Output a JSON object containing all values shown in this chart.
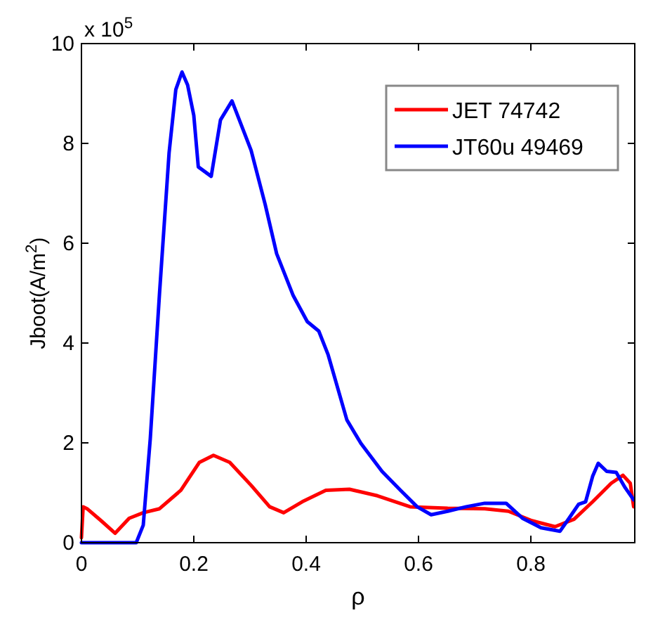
{
  "chart_data": {
    "type": "line",
    "xlabel": "ρ",
    "ylabel": "Jboot(A/m$^{2}$)",
    "annotations": [
      "x 10$^{5}$"
    ],
    "xlim": [
      0,
      0.985
    ],
    "xticks": [
      0,
      0.2,
      0.4,
      0.6,
      0.8
    ],
    "ylim": [
      0,
      10
    ],
    "yticks": [
      0,
      2,
      4,
      6,
      8,
      10
    ],
    "grid": false,
    "legend": "top right",
    "series": [
      {
        "name": "JET 74742",
        "color": "#ff0000",
        "x": [
          0,
          0.003,
          0.01,
          0.035,
          0.06,
          0.085,
          0.11,
          0.139,
          0.177,
          0.21,
          0.235,
          0.264,
          0.302,
          0.335,
          0.36,
          0.393,
          0.435,
          0.477,
          0.527,
          0.585,
          0.652,
          0.718,
          0.76,
          0.802,
          0.843,
          0.877,
          0.91,
          0.943,
          0.964,
          0.977,
          0.983
        ],
        "values": [
          0.1,
          0.72,
          0.68,
          0.44,
          0.19,
          0.49,
          0.6,
          0.68,
          1.05,
          1.61,
          1.75,
          1.61,
          1.15,
          0.72,
          0.6,
          0.82,
          1.05,
          1.07,
          0.94,
          0.72,
          0.69,
          0.68,
          0.63,
          0.44,
          0.32,
          0.47,
          0.82,
          1.19,
          1.35,
          1.19,
          0.72
        ]
      },
      {
        "name": "JT60u 49469",
        "color": "#0000ff",
        "x": [
          0,
          0.0975,
          0.11,
          0.1225,
          0.139,
          0.156,
          0.168,
          0.179,
          0.189,
          0.2,
          0.208,
          0.231,
          0.2475,
          0.268,
          0.302,
          0.327,
          0.3475,
          0.377,
          0.402,
          0.4225,
          0.439,
          0.4725,
          0.4975,
          0.535,
          0.568,
          0.5975,
          0.6225,
          0.652,
          0.685,
          0.718,
          0.756,
          0.785,
          0.818,
          0.852,
          0.868,
          0.885,
          0.8975,
          0.91,
          0.92,
          0.935,
          0.952,
          0.968,
          0.983
        ],
        "values": [
          0,
          0,
          0.35,
          2.08,
          5.0,
          7.81,
          9.08,
          9.43,
          9.17,
          8.56,
          7.53,
          7.34,
          8.47,
          8.85,
          7.86,
          6.78,
          5.79,
          4.95,
          4.43,
          4.24,
          3.77,
          2.46,
          1.99,
          1.43,
          1.05,
          0.72,
          0.56,
          0.63,
          0.72,
          0.79,
          0.79,
          0.49,
          0.3,
          0.23,
          0.49,
          0.77,
          0.82,
          1.33,
          1.59,
          1.43,
          1.41,
          1.1,
          0.86
        ]
      }
    ]
  }
}
